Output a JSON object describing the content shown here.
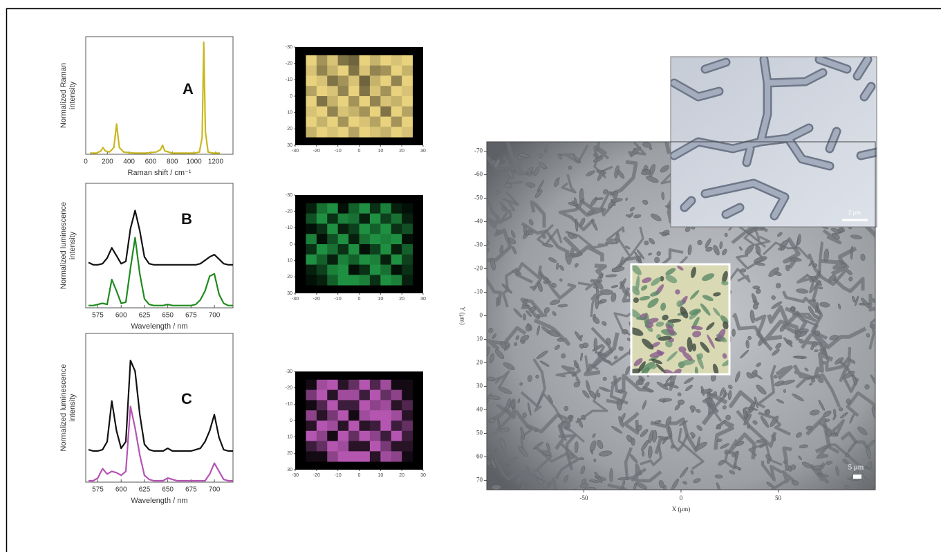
{
  "chart_data": [
    {
      "type": "line",
      "annotation": "A",
      "ylabel": [
        "Normalized Raman",
        "intensity"
      ],
      "xlabel": "Raman shift / cm⁻¹",
      "xlim": [
        0,
        1360
      ],
      "xticks": [
        0,
        200,
        400,
        600,
        800,
        1000,
        1200
      ],
      "ylim": [
        0,
        1.05
      ],
      "x": [
        40,
        100,
        140,
        160,
        180,
        220,
        260,
        285,
        310,
        350,
        450,
        550,
        650,
        690,
        710,
        730,
        800,
        900,
        1000,
        1050,
        1075,
        1090,
        1105,
        1130,
        1180,
        1240
      ],
      "series": [
        {
          "color": "#c9b820",
          "values": [
            0.01,
            0.01,
            0.03,
            0.06,
            0.03,
            0.02,
            0.06,
            0.27,
            0.06,
            0.02,
            0.01,
            0.01,
            0.02,
            0.04,
            0.08,
            0.03,
            0.01,
            0.01,
            0.01,
            0.02,
            0.15,
            1.0,
            0.2,
            0.02,
            0.01,
            0.01
          ]
        }
      ]
    },
    {
      "type": "heatmap",
      "xlim": [
        -30,
        30
      ],
      "ylim": [
        30,
        -30
      ],
      "xticks": [
        -30,
        -20,
        -10,
        0,
        10,
        20,
        30
      ],
      "yticks": [
        -30,
        -20,
        -10,
        0,
        10,
        20,
        30
      ],
      "cell_xlim": [
        -25,
        25
      ],
      "cell_ylim": [
        -25,
        25
      ],
      "colors": [
        "#3b3522",
        "#e8d27e"
      ],
      "z": [
        [
          1,
          0.6,
          0.9,
          0.4,
          0.3,
          1,
          0.8,
          1,
          0.9,
          1
        ],
        [
          0.9,
          0.5,
          0.8,
          1,
          0.4,
          0.9,
          0.5,
          0.6,
          1,
          0.8
        ],
        [
          1,
          0.9,
          0.4,
          0.6,
          0.9,
          0.3,
          0.8,
          1,
          0.5,
          1
        ],
        [
          0.7,
          1,
          0.9,
          0.5,
          1,
          0.4,
          0.9,
          0.6,
          1,
          0.9
        ],
        [
          1,
          0.4,
          0.8,
          1,
          0.6,
          1,
          0.5,
          0.9,
          0.8,
          1
        ],
        [
          0.9,
          1,
          0.5,
          0.9,
          0.8,
          0.6,
          1,
          0.4,
          1,
          0.7
        ],
        [
          1,
          0.8,
          1,
          0.6,
          1,
          0.9,
          0.7,
          1,
          0.6,
          1
        ],
        [
          0.8,
          1,
          0.9,
          1,
          0.7,
          1,
          0.9,
          0.8,
          1,
          0.9
        ]
      ]
    },
    {
      "type": "line",
      "annotation": "B",
      "ylabel": [
        "Normalized luminescence",
        "intensity"
      ],
      "xlabel": "Wavelength / nm",
      "xlim": [
        562,
        720
      ],
      "xticks": [
        575,
        600,
        625,
        650,
        675,
        700
      ],
      "ylim": [
        0,
        1.1
      ],
      "x": [
        565,
        570,
        575,
        580,
        585,
        590,
        595,
        600,
        605,
        610,
        615,
        620,
        625,
        630,
        635,
        640,
        645,
        650,
        655,
        660,
        665,
        670,
        675,
        680,
        685,
        690,
        695,
        700,
        705,
        710,
        715,
        720
      ],
      "series": [
        {
          "color": "#111111",
          "values": [
            0.4,
            0.38,
            0.38,
            0.39,
            0.44,
            0.53,
            0.46,
            0.39,
            0.41,
            0.7,
            0.86,
            0.68,
            0.45,
            0.39,
            0.38,
            0.38,
            0.38,
            0.38,
            0.38,
            0.38,
            0.38,
            0.38,
            0.38,
            0.38,
            0.39,
            0.42,
            0.45,
            0.47,
            0.43,
            0.39,
            0.38,
            0.38
          ]
        },
        {
          "color": "#1f8a1f",
          "values": [
            0.02,
            0.02,
            0.03,
            0.04,
            0.03,
            0.25,
            0.15,
            0.04,
            0.05,
            0.35,
            0.62,
            0.3,
            0.08,
            0.03,
            0.02,
            0.02,
            0.02,
            0.03,
            0.02,
            0.02,
            0.02,
            0.02,
            0.02,
            0.03,
            0.07,
            0.15,
            0.28,
            0.3,
            0.12,
            0.04,
            0.02,
            0.02
          ]
        }
      ]
    },
    {
      "type": "heatmap",
      "xlim": [
        -30,
        30
      ],
      "ylim": [
        30,
        -30
      ],
      "xticks": [
        -30,
        -20,
        -10,
        0,
        10,
        20,
        30
      ],
      "yticks": [
        -30,
        -20,
        -10,
        0,
        10,
        20,
        30
      ],
      "cell_xlim": [
        -25,
        25
      ],
      "cell_ylim": [
        -25,
        25
      ],
      "colors": [
        "#000000",
        "#22a048"
      ],
      "z": [
        [
          0.2,
          0.7,
          0.9,
          0.1,
          0.6,
          0.9,
          0.3,
          0.8,
          0.2,
          0.1
        ],
        [
          0.5,
          0.9,
          0.3,
          0.8,
          0.7,
          0.2,
          0.9,
          0.4,
          0.7,
          0.2
        ],
        [
          0.1,
          0.3,
          0.9,
          0.2,
          0.4,
          0.9,
          0.6,
          0.9,
          0.3,
          0.5
        ],
        [
          0.8,
          0.1,
          0.5,
          0.9,
          0.2,
          0.7,
          0.9,
          0.8,
          0.9,
          0.1
        ],
        [
          0.3,
          0.9,
          0.7,
          0.3,
          0.9,
          0.1,
          0.4,
          0.9,
          0.2,
          0.6
        ],
        [
          0.9,
          0.6,
          0.2,
          0.8,
          0.6,
          0.9,
          0.8,
          0.2,
          0.9,
          0.4
        ],
        [
          0.2,
          0.4,
          0.8,
          0.9,
          0.1,
          0.3,
          0.9,
          0.7,
          0.1,
          0.3
        ],
        [
          0.1,
          0.2,
          0.6,
          0.9,
          0.9,
          0.8,
          0.3,
          0.9,
          0.8,
          0.2
        ]
      ]
    },
    {
      "type": "line",
      "annotation": "C",
      "ylabel": [
        "Normalized luminescence",
        "intensity"
      ],
      "xlabel": "Wavelength / nm",
      "xlim": [
        562,
        720
      ],
      "xticks": [
        575,
        600,
        625,
        650,
        675,
        700
      ],
      "ylim": [
        0,
        1.1
      ],
      "x": [
        565,
        570,
        575,
        580,
        585,
        590,
        595,
        600,
        605,
        610,
        615,
        620,
        625,
        630,
        635,
        640,
        645,
        650,
        655,
        660,
        665,
        670,
        675,
        680,
        685,
        690,
        695,
        700,
        705,
        710,
        715,
        720
      ],
      "series": [
        {
          "color": "#111111",
          "values": [
            0.24,
            0.23,
            0.23,
            0.24,
            0.3,
            0.6,
            0.38,
            0.25,
            0.3,
            0.9,
            0.82,
            0.5,
            0.28,
            0.24,
            0.23,
            0.23,
            0.23,
            0.25,
            0.23,
            0.23,
            0.23,
            0.23,
            0.23,
            0.24,
            0.25,
            0.3,
            0.38,
            0.5,
            0.33,
            0.24,
            0.23,
            0.23
          ]
        },
        {
          "color": "#b552b5",
          "values": [
            0.01,
            0.01,
            0.03,
            0.1,
            0.06,
            0.08,
            0.07,
            0.05,
            0.08,
            0.56,
            0.4,
            0.2,
            0.05,
            0.02,
            0.01,
            0.01,
            0.01,
            0.03,
            0.02,
            0.01,
            0.01,
            0.01,
            0.01,
            0.01,
            0.01,
            0.01,
            0.06,
            0.14,
            0.08,
            0.02,
            0.01,
            0.01
          ]
        }
      ]
    },
    {
      "type": "heatmap",
      "xlim": [
        -30,
        30
      ],
      "ylim": [
        30,
        -30
      ],
      "xticks": [
        -30,
        -20,
        -10,
        0,
        10,
        20,
        30
      ],
      "yticks": [
        -30,
        -20,
        -10,
        0,
        10,
        20,
        30
      ],
      "cell_xlim": [
        -25,
        25
      ],
      "cell_ylim": [
        -25,
        25
      ],
      "colors": [
        "#000000",
        "#c85fc4"
      ],
      "z": [
        [
          0.1,
          0.8,
          0.9,
          0.2,
          0.5,
          0.9,
          0.4,
          0.8,
          0.1,
          0.1
        ],
        [
          0.6,
          0.9,
          0.2,
          0.8,
          0.8,
          0.3,
          0.9,
          0.5,
          0.7,
          0.1
        ],
        [
          0.1,
          0.4,
          0.9,
          0.3,
          0.3,
          0.9,
          0.7,
          0.8,
          0.2,
          0.4
        ],
        [
          0.7,
          0.2,
          0.6,
          0.9,
          0.1,
          0.8,
          0.9,
          0.9,
          0.8,
          0.2
        ],
        [
          0.2,
          0.9,
          0.8,
          0.2,
          0.9,
          0.2,
          0.3,
          0.9,
          0.3,
          0.5
        ],
        [
          0.9,
          0.7,
          0.1,
          0.9,
          0.5,
          0.9,
          0.7,
          0.3,
          0.9,
          0.3
        ],
        [
          0.3,
          0.5,
          0.9,
          0.8,
          0.2,
          0.2,
          0.9,
          0.6,
          0.2,
          0.2
        ],
        [
          0.1,
          0.1,
          0.7,
          0.9,
          0.9,
          0.9,
          0.2,
          0.8,
          0.7,
          0.1
        ]
      ]
    },
    {
      "type": "image",
      "xlabel": "X (μm)",
      "ylabel": "Y (μm)",
      "xlim": [
        -100,
        100
      ],
      "ylim": [
        74,
        -74
      ],
      "xticks": [
        -50,
        0,
        50
      ],
      "yticks": [
        -70,
        -60,
        -50,
        -40,
        -30,
        -20,
        -10,
        0,
        10,
        20,
        30,
        40,
        50,
        60,
        70
      ],
      "scale_bar": "5 μm",
      "inset_scale_bar": "2 μm"
    }
  ]
}
